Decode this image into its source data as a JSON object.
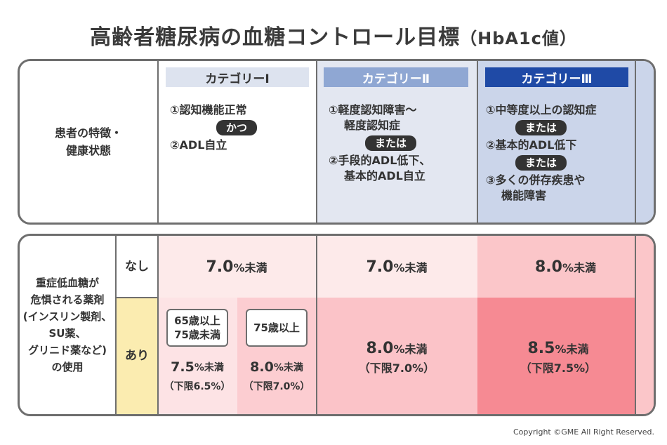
{
  "title": {
    "main": "高齢者糖尿病の血糖コントロール目標",
    "sub": "（HbA1c値）"
  },
  "top": {
    "row_label": [
      "患者の特徴・",
      "健康状態"
    ],
    "categories": [
      {
        "header": "カテゴリーⅠ",
        "line1": "①認知機能正常",
        "pill": "かつ",
        "line2": "②ADL自立"
      },
      {
        "header": "カテゴリーⅡ",
        "line1a": "①軽度認知障害～",
        "line1b": "軽度認知症",
        "pill": "または",
        "line2a": "②手段的ADL低下、",
        "line2b": "基本的ADL自立"
      },
      {
        "header": "カテゴリーⅢ",
        "line1": "①中等度以上の認知症",
        "pill1": "または",
        "line2": "②基本的ADL低下",
        "pill2": "または",
        "line3a": "③多くの併存疾患や",
        "line3b": "機能障害"
      }
    ]
  },
  "bottom": {
    "row_label": [
      "重症低血糖が",
      "危惧される薬剤",
      "(インスリン製剤、",
      "SU薬、",
      "グリニド薬など)",
      "の使用"
    ],
    "nashi": {
      "label": "なし",
      "cat1": {
        "value": "7.0",
        "unit": "%未満"
      },
      "cat2": {
        "value": "7.0",
        "unit": "%未満"
      },
      "cat3": {
        "value": "8.0",
        "unit": "%未満"
      }
    },
    "ari": {
      "label": "あり",
      "cat1a": {
        "age1": "65歳以上",
        "age2": "75歳未満",
        "value": "7.5",
        "unit": "%未満",
        "note": "（下限6.5%）"
      },
      "cat1b": {
        "age": "75歳以上",
        "value": "8.0",
        "unit": "%未満",
        "note": "（下限7.0%）"
      },
      "cat2": {
        "value": "8.0",
        "unit": "%未満",
        "note": "（下限7.0%）"
      },
      "cat3": {
        "value": "8.5",
        "unit": "%未満",
        "note": "（下限7.5%）"
      }
    }
  },
  "colors": {
    "cat1_header": "#dde3ef",
    "cat2_header": "#8fa7d3",
    "cat3_header": "#1f4aa6",
    "cat2_bg": "#e3e7f1",
    "cat3_bg": "#cbd5ea",
    "nashi_cat1": "#fdeaea",
    "nashi_cat3": "#fbc6c9",
    "ari_label": "#fbecb0",
    "ari_cat1a": "#fde3e5",
    "ari_cat1b": "#fccdd1",
    "ari_cat2": "#fbc3c8",
    "ari_cat3": "#f68a93"
  },
  "copyright": "Copyright ©GME All Right Reserved."
}
